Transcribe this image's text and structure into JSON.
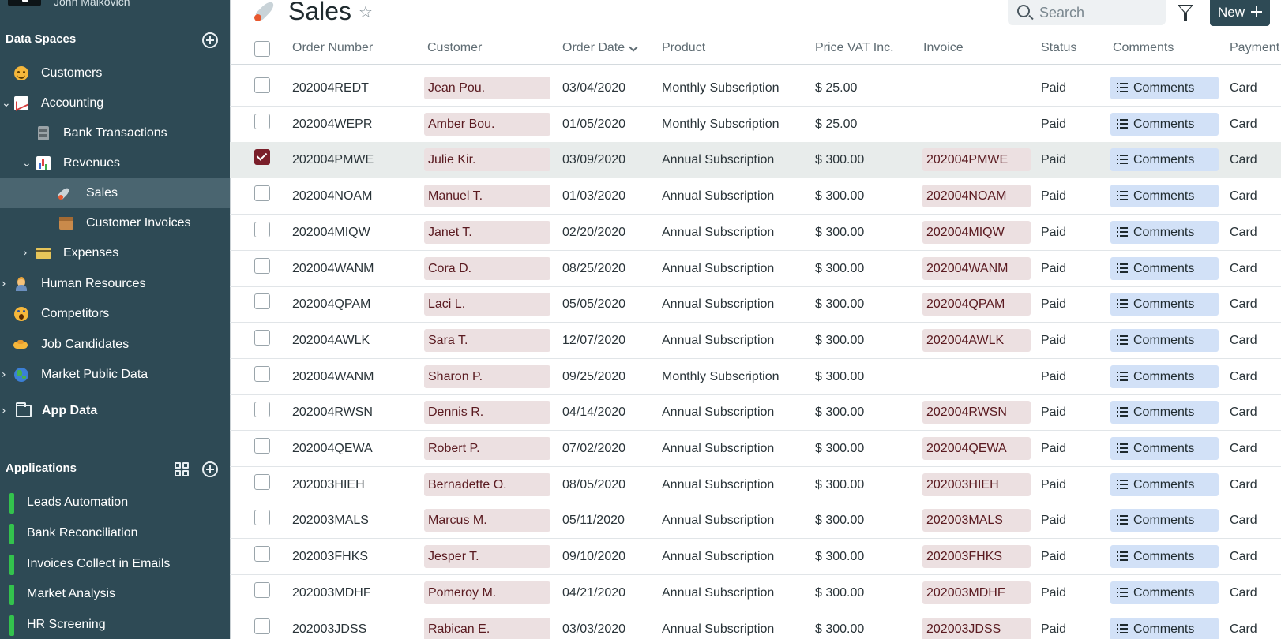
{
  "user": {
    "name": "John Malkovich"
  },
  "sidebar": {
    "data_spaces_title": "Data Spaces",
    "items": [
      {
        "label": "Customers",
        "icon": "hugging-face-icon"
      },
      {
        "label": "Accounting",
        "icon": "chart-increasing-icon",
        "expanded": true
      },
      {
        "label": "Bank Transactions",
        "icon": "file-cabinet-icon"
      },
      {
        "label": "Revenues",
        "icon": "bar-chart-icon",
        "expanded": true
      },
      {
        "label": "Sales",
        "icon": "rocket-icon",
        "active": true
      },
      {
        "label": "Customer Invoices",
        "icon": "card-file-box-icon"
      },
      {
        "label": "Expenses",
        "icon": "credit-card-icon",
        "expanded": false
      },
      {
        "label": "Human Resources",
        "icon": "person-icon",
        "expanded": false
      },
      {
        "label": "Competitors",
        "icon": "screaming-face-icon"
      },
      {
        "label": "Job Candidates",
        "icon": "handshake-icon"
      },
      {
        "label": "Market Public Data",
        "icon": "globe-icon",
        "expanded": false
      },
      {
        "label": "App Data",
        "icon": "folder-icon",
        "expanded": false
      }
    ],
    "applications_title": "Applications",
    "applications": [
      {
        "label": "Leads Automation",
        "status_color": "#33c24d"
      },
      {
        "label": "Bank Reconciliation",
        "status_color": "#33c24d"
      },
      {
        "label": "Invoices Collect in Emails",
        "status_color": "#33c24d"
      },
      {
        "label": "Market Analysis",
        "status_color": "#33c24d"
      },
      {
        "label": "HR Screening",
        "status_color": "#33c24d"
      }
    ]
  },
  "header": {
    "title": "Sales",
    "search_placeholder": "Search",
    "new_label": "New"
  },
  "table": {
    "columns": [
      "Order Number",
      "Customer",
      "Order Date",
      "Product",
      "Price VAT Inc.",
      "Invoice",
      "Status",
      "Comments",
      "Payment"
    ],
    "sort_column": "Order Date",
    "rows": [
      {
        "order": "202004REDT",
        "customer": "Jean Pou.",
        "date": "03/04/2020",
        "product": "Monthly Subscription",
        "price": "$ 25.00",
        "invoice": "",
        "status": "Paid",
        "comments": "Comments",
        "payment": "Card",
        "selected": false
      },
      {
        "order": "202004WEPR",
        "customer": "Amber Bou.",
        "date": "01/05/2020",
        "product": "Monthly Subscription",
        "price": "$ 25.00",
        "invoice": "",
        "status": "Paid",
        "comments": "Comments",
        "payment": "Card",
        "selected": false
      },
      {
        "order": "202004PMWE",
        "customer": "Julie Kir.",
        "date": "03/09/2020",
        "product": "Annual Subscription",
        "price": "$ 300.00",
        "invoice": "202004PMWE",
        "status": "Paid",
        "comments": "Comments",
        "payment": "Card",
        "selected": true
      },
      {
        "order": "202004NOAM",
        "customer": "Manuel T.",
        "date": "01/03/2020",
        "product": "Annual Subscription",
        "price": "$ 300.00",
        "invoice": "202004NOAM",
        "status": "Paid",
        "comments": "Comments",
        "payment": "Card",
        "selected": false
      },
      {
        "order": "202004MIQW",
        "customer": "Janet T.",
        "date": "02/20/2020",
        "product": "Annual Subscription",
        "price": "$ 300.00",
        "invoice": "202004MIQW",
        "status": "Paid",
        "comments": "Comments",
        "payment": "Card",
        "selected": false
      },
      {
        "order": "202004WANM",
        "customer": "Cora D.",
        "date": "08/25/2020",
        "product": "Annual Subscription",
        "price": "$ 300.00",
        "invoice": "202004WANM",
        "status": "Paid",
        "comments": "Comments",
        "payment": "Card",
        "selected": false
      },
      {
        "order": "202004QPAM",
        "customer": "Laci L.",
        "date": "05/05/2020",
        "product": "Annual Subscription",
        "price": "$ 300.00",
        "invoice": "202004QPAM",
        "status": "Paid",
        "comments": "Comments",
        "payment": "Card",
        "selected": false
      },
      {
        "order": "202004AWLK",
        "customer": "Sara T.",
        "date": "12/07/2020",
        "product": "Annual Subscription",
        "price": "$ 300.00",
        "invoice": "202004AWLK",
        "status": "Paid",
        "comments": "Comments",
        "payment": "Card",
        "selected": false
      },
      {
        "order": "202004WANM",
        "customer": "Sharon P.",
        "date": "09/25/2020",
        "product": "Monthly Subscription",
        "price": "$ 300.00",
        "invoice": "",
        "status": "Paid",
        "comments": "Comments",
        "payment": "Card",
        "selected": false
      },
      {
        "order": "202004RWSN",
        "customer": "Dennis R.",
        "date": "04/14/2020",
        "product": "Annual Subscription",
        "price": "$ 300.00",
        "invoice": "202004RWSN",
        "status": "Paid",
        "comments": "Comments",
        "payment": "Card",
        "selected": false
      },
      {
        "order": "202004QEWA",
        "customer": "Robert P.",
        "date": "07/02/2020",
        "product": "Annual Subscription",
        "price": "$ 300.00",
        "invoice": "202004QEWA",
        "status": "Paid",
        "comments": "Comments",
        "payment": "Card",
        "selected": false
      },
      {
        "order": "202003HIEH",
        "customer": "Bernadette O.",
        "date": "08/05/2020",
        "product": "Annual Subscription",
        "price": "$ 300.00",
        "invoice": "202003HIEH",
        "status": "Paid",
        "comments": "Comments",
        "payment": "Card",
        "selected": false
      },
      {
        "order": "202003MALS",
        "customer": "Marcus M.",
        "date": "05/11/2020",
        "product": "Annual Subscription",
        "price": "$ 300.00",
        "invoice": "202003MALS",
        "status": "Paid",
        "comments": "Comments",
        "payment": "Card",
        "selected": false
      },
      {
        "order": "202003FHKS",
        "customer": "Jesper T.",
        "date": "09/10/2020",
        "product": "Annual Subscription",
        "price": "$ 300.00",
        "invoice": "202003FHKS",
        "status": "Paid",
        "comments": "Comments",
        "payment": "Card",
        "selected": false
      },
      {
        "order": "202003MDHF",
        "customer": "Pomeroy M.",
        "date": "04/21/2020",
        "product": "Annual Subscription",
        "price": "$ 300.00",
        "invoice": "202003MDHF",
        "status": "Paid",
        "comments": "Comments",
        "payment": "Card",
        "selected": false
      },
      {
        "order": "202003JDSS",
        "customer": "Rabican E.",
        "date": "03/03/2020",
        "product": "Annual Subscription",
        "price": "$ 300.00",
        "invoice": "202003JDSS",
        "status": "Paid",
        "comments": "Comments",
        "payment": "Card",
        "selected": false
      }
    ]
  }
}
